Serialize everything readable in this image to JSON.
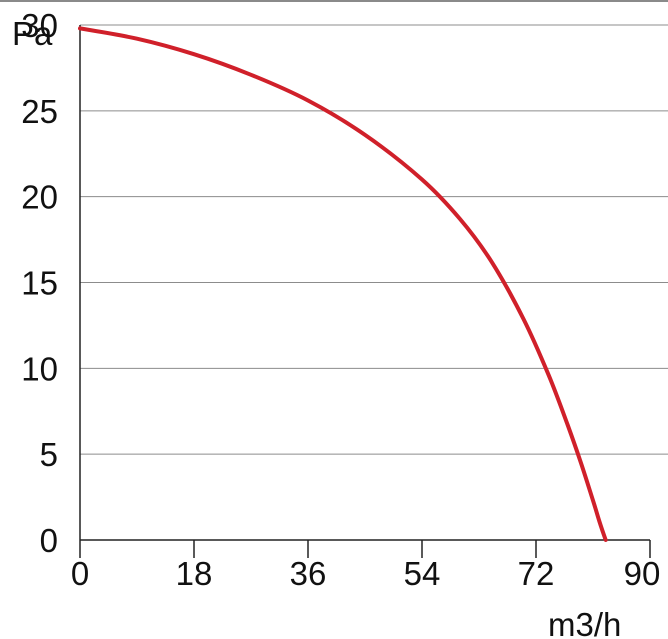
{
  "chart_data": {
    "type": "line",
    "title": "",
    "xlabel": "m3/h",
    "ylabel": "Pa",
    "xlim": [
      0,
      90
    ],
    "ylim": [
      0,
      30
    ],
    "x_ticks": [
      0,
      18,
      36,
      54,
      72,
      90
    ],
    "y_ticks": [
      0,
      5,
      10,
      15,
      20,
      25,
      30
    ],
    "grid": "horizontal",
    "series": [
      {
        "color": "#d0202a",
        "x": [
          0,
          9,
          18,
          27,
          36,
          45,
          54,
          60,
          65,
          70,
          74,
          77,
          79,
          81,
          82,
          83
        ],
        "y": [
          29.8,
          29.2,
          28.3,
          27.1,
          25.6,
          23.6,
          21.0,
          18.7,
          16.2,
          12.9,
          9.6,
          6.7,
          4.6,
          2.3,
          1.1,
          0
        ]
      }
    ]
  }
}
